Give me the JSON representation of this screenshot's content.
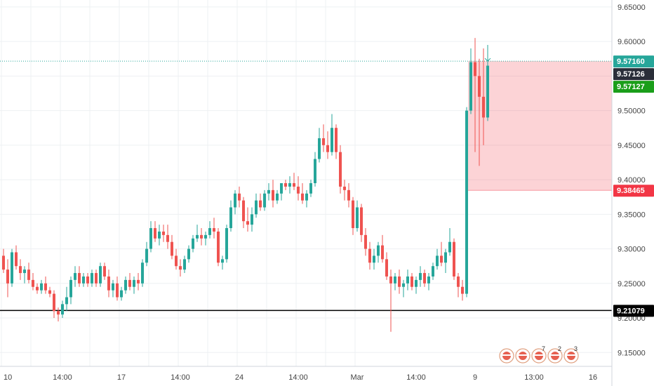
{
  "chart_data": {
    "type": "candlestick",
    "y_axis": {
      "ylim": [
        9.13,
        9.66
      ],
      "ticks": [
        "9.65000",
        "9.60000",
        "9.55000",
        "9.50000",
        "9.45000",
        "9.40000",
        "9.35000",
        "9.30000",
        "9.25000",
        "9.20000",
        "9.15000"
      ],
      "tick_values": [
        9.65,
        9.6,
        9.55,
        9.5,
        9.45,
        9.4,
        9.35,
        9.3,
        9.25,
        9.2,
        9.15
      ]
    },
    "x_axis": {
      "labels": [
        "10",
        "14:00",
        "17",
        "14:00",
        "24",
        "14:00",
        "Mar",
        "14:00",
        "9",
        "13:00",
        "16"
      ],
      "label_positions_in_bars": [
        0,
        14,
        28,
        42,
        56,
        70,
        84,
        98,
        112,
        126,
        140
      ]
    },
    "grid": true,
    "candles": [
      [
        9.29,
        9.3,
        9.265,
        9.27
      ],
      [
        9.27,
        9.285,
        9.23,
        9.25
      ],
      [
        9.25,
        9.3,
        9.245,
        9.295
      ],
      [
        9.295,
        9.305,
        9.27,
        9.275
      ],
      [
        9.275,
        9.285,
        9.255,
        9.265
      ],
      [
        9.265,
        9.275,
        9.25,
        9.27
      ],
      [
        9.27,
        9.28,
        9.25,
        9.255
      ],
      [
        9.255,
        9.265,
        9.24,
        9.245
      ],
      [
        9.245,
        9.25,
        9.235,
        9.24
      ],
      [
        9.24,
        9.255,
        9.235,
        9.25
      ],
      [
        9.25,
        9.26,
        9.235,
        9.24
      ],
      [
        9.24,
        9.245,
        9.23,
        9.235
      ],
      [
        9.235,
        9.24,
        9.2,
        9.21
      ],
      [
        9.21,
        9.215,
        9.195,
        9.205
      ],
      [
        9.205,
        9.225,
        9.2,
        9.22
      ],
      [
        9.22,
        9.245,
        9.21,
        9.23
      ],
      [
        9.23,
        9.26,
        9.22,
        9.255
      ],
      [
        9.255,
        9.275,
        9.245,
        9.265
      ],
      [
        9.265,
        9.275,
        9.245,
        9.25
      ],
      [
        9.25,
        9.265,
        9.245,
        9.26
      ],
      [
        9.26,
        9.265,
        9.245,
        9.25
      ],
      [
        9.25,
        9.27,
        9.245,
        9.265
      ],
      [
        9.265,
        9.27,
        9.245,
        9.25
      ],
      [
        9.25,
        9.28,
        9.245,
        9.275
      ],
      [
        9.275,
        9.28,
        9.255,
        9.26
      ],
      [
        9.26,
        9.27,
        9.23,
        9.24
      ],
      [
        9.24,
        9.255,
        9.23,
        9.25
      ],
      [
        9.25,
        9.26,
        9.225,
        9.23
      ],
      [
        9.23,
        9.245,
        9.225,
        9.24
      ],
      [
        9.24,
        9.26,
        9.235,
        9.255
      ],
      [
        9.255,
        9.265,
        9.24,
        9.245
      ],
      [
        9.245,
        9.26,
        9.235,
        9.255
      ],
      [
        9.255,
        9.265,
        9.24,
        9.25
      ],
      [
        9.25,
        9.285,
        9.245,
        9.28
      ],
      [
        9.28,
        9.31,
        9.275,
        9.3
      ],
      [
        9.3,
        9.34,
        9.295,
        9.33
      ],
      [
        9.33,
        9.34,
        9.31,
        9.315
      ],
      [
        9.315,
        9.335,
        9.305,
        9.325
      ],
      [
        9.325,
        9.335,
        9.31,
        9.32
      ],
      [
        9.32,
        9.335,
        9.3,
        9.31
      ],
      [
        9.31,
        9.32,
        9.285,
        9.29
      ],
      [
        9.29,
        9.3,
        9.27,
        9.275
      ],
      [
        9.275,
        9.285,
        9.26,
        9.27
      ],
      [
        9.27,
        9.29,
        9.265,
        9.285
      ],
      [
        9.285,
        9.305,
        9.28,
        9.3
      ],
      [
        9.3,
        9.32,
        9.295,
        9.315
      ],
      [
        9.315,
        9.335,
        9.31,
        9.32
      ],
      [
        9.32,
        9.33,
        9.305,
        9.315
      ],
      [
        9.315,
        9.325,
        9.305,
        9.32
      ],
      [
        9.32,
        9.34,
        9.315,
        9.33
      ],
      [
        9.33,
        9.345,
        9.315,
        9.325
      ],
      [
        9.325,
        9.33,
        9.275,
        9.28
      ],
      [
        9.28,
        9.29,
        9.27,
        9.285
      ],
      [
        9.285,
        9.335,
        9.28,
        9.33
      ],
      [
        9.33,
        9.37,
        9.325,
        9.36
      ],
      [
        9.36,
        9.385,
        9.35,
        9.38
      ],
      [
        9.38,
        9.39,
        9.36,
        9.37
      ],
      [
        9.37,
        9.375,
        9.33,
        9.34
      ],
      [
        9.34,
        9.36,
        9.325,
        9.335
      ],
      [
        9.335,
        9.36,
        9.325,
        9.35
      ],
      [
        9.35,
        9.38,
        9.345,
        9.37
      ],
      [
        9.37,
        9.38,
        9.355,
        9.36
      ],
      [
        9.36,
        9.385,
        9.355,
        9.38
      ],
      [
        9.38,
        9.395,
        9.37,
        9.385
      ],
      [
        9.385,
        9.4,
        9.36,
        9.37
      ],
      [
        9.37,
        9.385,
        9.365,
        9.38
      ],
      [
        9.38,
        9.395,
        9.37,
        9.395
      ],
      [
        9.395,
        9.4,
        9.385,
        9.39
      ],
      [
        9.39,
        9.405,
        9.38,
        9.395
      ],
      [
        9.395,
        9.41,
        9.385,
        9.39
      ],
      [
        9.39,
        9.405,
        9.37,
        9.38
      ],
      [
        9.38,
        9.395,
        9.365,
        9.37
      ],
      [
        9.37,
        9.385,
        9.36,
        9.38
      ],
      [
        9.38,
        9.4,
        9.375,
        9.395
      ],
      [
        9.395,
        9.44,
        9.39,
        9.43
      ],
      [
        9.43,
        9.475,
        9.425,
        9.46
      ],
      [
        9.46,
        9.48,
        9.44,
        9.45
      ],
      [
        9.45,
        9.47,
        9.43,
        9.44
      ],
      [
        9.44,
        9.495,
        9.435,
        9.475
      ],
      [
        9.475,
        9.48,
        9.43,
        9.44
      ],
      [
        9.44,
        9.45,
        9.38,
        9.39
      ],
      [
        9.39,
        9.4,
        9.37,
        9.385
      ],
      [
        9.385,
        9.395,
        9.36,
        9.37
      ],
      [
        9.37,
        9.375,
        9.32,
        9.33
      ],
      [
        9.33,
        9.37,
        9.325,
        9.36
      ],
      [
        9.36,
        9.365,
        9.31,
        9.32
      ],
      [
        9.32,
        9.33,
        9.29,
        9.3
      ],
      [
        9.3,
        9.31,
        9.27,
        9.28
      ],
      [
        9.28,
        9.3,
        9.27,
        9.29
      ],
      [
        9.29,
        9.31,
        9.28,
        9.305
      ],
      [
        9.305,
        9.32,
        9.28,
        9.285
      ],
      [
        9.285,
        9.295,
        9.255,
        9.26
      ],
      [
        9.26,
        9.27,
        9.18,
        9.25
      ],
      [
        9.25,
        9.265,
        9.24,
        9.26
      ],
      [
        9.26,
        9.27,
        9.235,
        9.245
      ],
      [
        9.245,
        9.255,
        9.23,
        9.25
      ],
      [
        9.25,
        9.27,
        9.24,
        9.26
      ],
      [
        9.26,
        9.265,
        9.24,
        9.245
      ],
      [
        9.245,
        9.26,
        9.235,
        9.255
      ],
      [
        9.255,
        9.275,
        9.245,
        9.265
      ],
      [
        9.265,
        9.27,
        9.245,
        9.25
      ],
      [
        9.25,
        9.265,
        9.24,
        9.26
      ],
      [
        9.26,
        9.28,
        9.255,
        9.275
      ],
      [
        9.275,
        9.3,
        9.27,
        9.29
      ],
      [
        9.29,
        9.31,
        9.275,
        9.28
      ],
      [
        9.28,
        9.3,
        9.265,
        9.295
      ],
      [
        9.295,
        9.33,
        9.29,
        9.31
      ],
      [
        9.31,
        9.315,
        9.255,
        9.26
      ],
      [
        9.26,
        9.265,
        9.23,
        9.245
      ],
      [
        9.245,
        9.255,
        9.225,
        9.235
      ],
      [
        9.235,
        9.505,
        9.23,
        9.5
      ],
      [
        9.5,
        9.59,
        9.495,
        9.57
      ],
      [
        9.57,
        9.605,
        9.44,
        9.55
      ],
      [
        9.55,
        9.575,
        9.42,
        9.52
      ],
      [
        9.52,
        9.59,
        9.45,
        9.49
      ],
      [
        9.49,
        9.595,
        9.485,
        9.565
      ]
    ],
    "up_color": "#26a69a",
    "down_color": "#ef5350",
    "price_levels": {
      "support": 9.21079,
      "dotted_current": 9.5716,
      "position_top": 9.5716,
      "position_bottom": 9.38465
    },
    "price_labels": [
      {
        "text": "9.57160",
        "value": 9.5716,
        "bg": "#26a69a"
      },
      {
        "text": "9.57126",
        "value": 9.57126,
        "bg": "#2a2e39"
      },
      {
        "text": "9.57127",
        "value": 9.57127,
        "bg": "#1a9e1a"
      },
      {
        "text": "9.38465",
        "value": 9.38465,
        "bg": "#f23645"
      },
      {
        "text": "9.21079",
        "value": 9.21079,
        "bg": "#000000"
      }
    ],
    "events": [
      {
        "label": ""
      },
      {
        "label": ""
      },
      {
        "label": "7"
      },
      {
        "label": "2"
      },
      {
        "label": "3"
      }
    ]
  }
}
